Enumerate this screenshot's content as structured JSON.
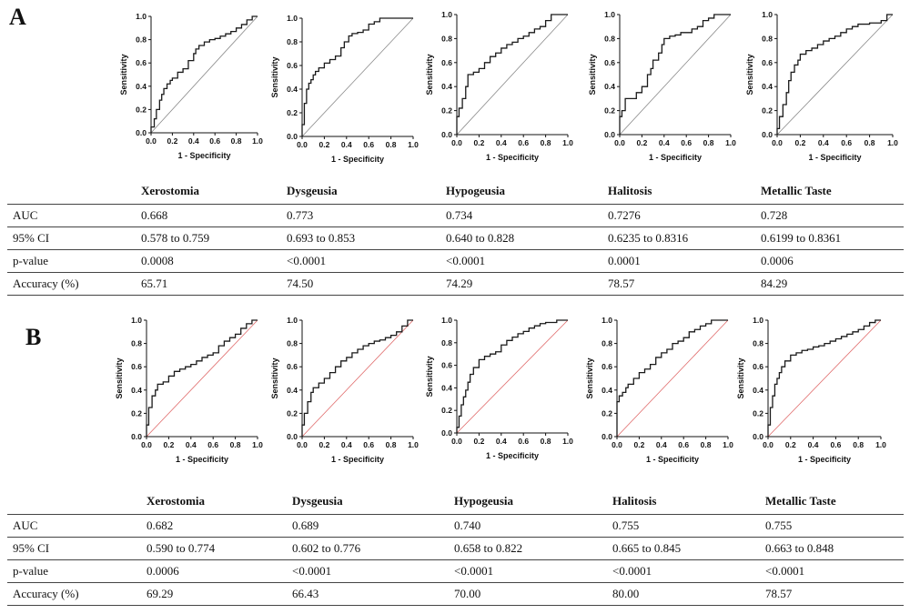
{
  "panels": [
    {
      "letter": "A",
      "columns": [
        "Xerostomia",
        "Dysgeusia",
        "Hypogeusia",
        "Halitosis",
        "Metallic Taste"
      ],
      "rows": [
        {
          "label": "AUC",
          "values": [
            "0.668",
            "0.773",
            "0.734",
            "0.7276",
            "0.728"
          ]
        },
        {
          "label": "95% CI",
          "values": [
            "0.578 to 0.759",
            "0.693 to 0.853",
            "0.640 to 0.828",
            "0.6235 to 0.8316",
            "0.6199 to 0.8361"
          ]
        },
        {
          "label": "p-value",
          "values": [
            "0.0008",
            "<0.0001",
            "<0.0001",
            "0.0001",
            "0.0006"
          ]
        },
        {
          "label": "Accuracy (%)",
          "values": [
            "65.71",
            "74.50",
            "74.29",
            "78.57",
            "84.29"
          ]
        }
      ]
    },
    {
      "letter": "B",
      "columns": [
        "Xerostomia",
        "Dysgeusia",
        "Hypogeusia",
        "Halitosis",
        "Metallic Taste"
      ],
      "rows": [
        {
          "label": "AUC",
          "values": [
            "0.682",
            "0.689",
            "0.740",
            "0.755",
            "0.755"
          ]
        },
        {
          "label": "95% CI",
          "values": [
            "0.590 to 0.774",
            "0.602 to 0.776",
            "0.658 to 0.822",
            "0.665 to 0.845",
            "0.663 to 0.848"
          ]
        },
        {
          "label": "p-value",
          "values": [
            "0.0006",
            "<0.0001",
            "<0.0001",
            "<0.0001",
            "<0.0001"
          ]
        },
        {
          "label": "Accuracy (%)",
          "values": [
            "69.29",
            "66.43",
            "70.00",
            "80.00",
            "78.57"
          ]
        }
      ]
    }
  ],
  "colors": {
    "curve": "#1a1a1a",
    "reference_panel_a": "#8a8a8a",
    "reference_panel_b": "#e06a6a",
    "separator": "#5b3a82"
  },
  "chart_data": [
    {
      "type": "line",
      "panel": "A",
      "xlabel": "1 - Specificity",
      "ylabel": "Sensitivity",
      "xlim": [
        0,
        1
      ],
      "ylim": [
        0,
        1
      ],
      "xticks": [
        "0.0",
        "0.2",
        "0.4",
        "0.6",
        "0.8",
        "1.0"
      ],
      "yticks": [
        "0.0",
        "0.2",
        "0.4",
        "0.6",
        "0.8",
        "1.0"
      ],
      "x": [
        0,
        0,
        0.03,
        0.05,
        0.08,
        0.1,
        0.12,
        0.15,
        0.18,
        0.2,
        0.25,
        0.3,
        0.35,
        0.4,
        0.42,
        0.45,
        0.5,
        0.55,
        0.6,
        0.65,
        0.7,
        0.75,
        0.8,
        0.85,
        0.9,
        0.95,
        1.0
      ],
      "y": [
        0,
        0.05,
        0.12,
        0.2,
        0.28,
        0.33,
        0.38,
        0.42,
        0.45,
        0.47,
        0.52,
        0.55,
        0.62,
        0.68,
        0.72,
        0.75,
        0.78,
        0.8,
        0.81,
        0.83,
        0.85,
        0.87,
        0.9,
        0.93,
        0.97,
        1.0,
        1.0
      ]
    },
    {
      "type": "line",
      "panel": "A",
      "xlabel": "1 - Specificity",
      "ylabel": "Sensitivity",
      "xlim": [
        0,
        1
      ],
      "ylim": [
        0,
        1
      ],
      "xticks": [
        "0.0",
        "0.2",
        "0.4",
        "0.6",
        "0.8",
        "1.0"
      ],
      "yticks": [
        "0.0",
        "0.2",
        "0.4",
        "0.6",
        "0.8",
        "1.0"
      ],
      "x": [
        0,
        0,
        0.02,
        0.04,
        0.06,
        0.08,
        0.1,
        0.12,
        0.15,
        0.2,
        0.25,
        0.3,
        0.35,
        0.38,
        0.42,
        0.45,
        0.5,
        0.55,
        0.6,
        0.65,
        0.7,
        0.8,
        0.9,
        1.0
      ],
      "y": [
        0,
        0.1,
        0.28,
        0.4,
        0.45,
        0.48,
        0.52,
        0.55,
        0.58,
        0.62,
        0.65,
        0.68,
        0.75,
        0.8,
        0.85,
        0.87,
        0.88,
        0.9,
        0.95,
        0.97,
        1.0,
        1.0,
        1.0,
        1.0
      ]
    },
    {
      "type": "line",
      "panel": "A",
      "xlabel": "1 - Specificity",
      "ylabel": "Sensitivity",
      "xlim": [
        0,
        1
      ],
      "ylim": [
        0,
        1
      ],
      "xticks": [
        "0.0",
        "0.2",
        "0.4",
        "0.6",
        "0.8",
        "1.0"
      ],
      "yticks": [
        "0.0",
        "0.2",
        "0.4",
        "0.6",
        "0.8",
        "1.0"
      ],
      "x": [
        0,
        0,
        0.02,
        0.05,
        0.08,
        0.1,
        0.15,
        0.2,
        0.25,
        0.3,
        0.35,
        0.4,
        0.45,
        0.5,
        0.55,
        0.6,
        0.65,
        0.7,
        0.75,
        0.8,
        0.85,
        0.9,
        1.0
      ],
      "y": [
        0,
        0.15,
        0.22,
        0.3,
        0.4,
        0.5,
        0.52,
        0.55,
        0.6,
        0.65,
        0.68,
        0.72,
        0.75,
        0.77,
        0.8,
        0.82,
        0.85,
        0.88,
        0.9,
        0.95,
        1.0,
        1.0,
        1.0
      ]
    },
    {
      "type": "line",
      "panel": "A",
      "xlabel": "1 - Specificity",
      "ylabel": "Sensitivity",
      "xlim": [
        0,
        1
      ],
      "ylim": [
        0,
        1
      ],
      "xticks": [
        "0.0",
        "0.2",
        "0.4",
        "0.6",
        "0.8",
        "1.0"
      ],
      "yticks": [
        "0.0",
        "0.2",
        "0.4",
        "0.6",
        "0.8",
        "1.0"
      ],
      "x": [
        0,
        0,
        0.02,
        0.05,
        0.1,
        0.15,
        0.2,
        0.25,
        0.28,
        0.3,
        0.35,
        0.38,
        0.4,
        0.45,
        0.5,
        0.55,
        0.6,
        0.65,
        0.7,
        0.75,
        0.8,
        0.85,
        0.9,
        1.0
      ],
      "y": [
        0,
        0.15,
        0.2,
        0.3,
        0.3,
        0.35,
        0.4,
        0.5,
        0.55,
        0.62,
        0.68,
        0.75,
        0.8,
        0.82,
        0.83,
        0.85,
        0.85,
        0.88,
        0.9,
        0.95,
        0.97,
        1.0,
        1.0,
        1.0
      ]
    },
    {
      "type": "line",
      "panel": "A",
      "xlabel": "1 - Specificity",
      "ylabel": "Sensitivity",
      "xlim": [
        0,
        1
      ],
      "ylim": [
        0,
        1
      ],
      "xticks": [
        "0.0",
        "0.2",
        "0.4",
        "0.6",
        "0.8",
        "1.0"
      ],
      "yticks": [
        "0.0",
        "0.2",
        "0.4",
        "0.6",
        "0.8",
        "1.0"
      ],
      "x": [
        0,
        0,
        0.02,
        0.05,
        0.08,
        0.1,
        0.12,
        0.15,
        0.18,
        0.2,
        0.25,
        0.3,
        0.35,
        0.4,
        0.45,
        0.5,
        0.55,
        0.6,
        0.65,
        0.7,
        0.8,
        0.9,
        0.95,
        1.0
      ],
      "y": [
        0,
        0.05,
        0.15,
        0.25,
        0.35,
        0.45,
        0.52,
        0.58,
        0.62,
        0.67,
        0.7,
        0.72,
        0.75,
        0.78,
        0.8,
        0.82,
        0.85,
        0.88,
        0.9,
        0.92,
        0.93,
        0.95,
        1.0,
        1.0
      ]
    },
    {
      "type": "line",
      "panel": "B",
      "xlabel": "1 - Specificity",
      "ylabel": "Sensitivity",
      "xlim": [
        0,
        1
      ],
      "ylim": [
        0,
        1
      ],
      "xticks": [
        "0.0",
        "0.2",
        "0.4",
        "0.6",
        "0.8",
        "1.0"
      ],
      "yticks": [
        "0.0",
        "0.2",
        "0.4",
        "0.6",
        "0.8",
        "1.0"
      ],
      "x": [
        0,
        0,
        0.02,
        0.05,
        0.08,
        0.1,
        0.15,
        0.2,
        0.25,
        0.3,
        0.35,
        0.4,
        0.45,
        0.5,
        0.55,
        0.6,
        0.65,
        0.7,
        0.75,
        0.8,
        0.85,
        0.9,
        0.95,
        1.0
      ],
      "y": [
        0,
        0.1,
        0.25,
        0.35,
        0.4,
        0.45,
        0.47,
        0.52,
        0.56,
        0.58,
        0.6,
        0.62,
        0.65,
        0.68,
        0.7,
        0.72,
        0.78,
        0.82,
        0.85,
        0.88,
        0.93,
        0.97,
        1.0,
        1.0
      ]
    },
    {
      "type": "line",
      "panel": "B",
      "xlabel": "1 - Specificity",
      "ylabel": "Sensitivity",
      "xlim": [
        0,
        1
      ],
      "ylim": [
        0,
        1
      ],
      "xticks": [
        "0.0",
        "0.2",
        "0.4",
        "0.6",
        "0.8",
        "1.0"
      ],
      "yticks": [
        "0.0",
        "0.2",
        "0.4",
        "0.6",
        "0.8",
        "1.0"
      ],
      "x": [
        0,
        0,
        0.02,
        0.05,
        0.08,
        0.1,
        0.15,
        0.2,
        0.25,
        0.3,
        0.35,
        0.4,
        0.45,
        0.5,
        0.55,
        0.6,
        0.65,
        0.7,
        0.75,
        0.8,
        0.85,
        0.9,
        0.95,
        1.0
      ],
      "y": [
        0,
        0.1,
        0.2,
        0.3,
        0.38,
        0.42,
        0.46,
        0.5,
        0.55,
        0.6,
        0.65,
        0.68,
        0.72,
        0.75,
        0.78,
        0.8,
        0.82,
        0.83,
        0.85,
        0.87,
        0.9,
        0.95,
        1.0,
        1.0
      ]
    },
    {
      "type": "line",
      "panel": "B",
      "xlabel": "1 - Specificity",
      "ylabel": "Sensitivity",
      "xlim": [
        0,
        1
      ],
      "ylim": [
        0,
        1
      ],
      "xticks": [
        "0.0",
        "0.2",
        "0.4",
        "0.6",
        "0.8",
        "1.0"
      ],
      "yticks": [
        "0.0",
        "0.2",
        "0.4",
        "0.6",
        "0.8",
        "1.0"
      ],
      "x": [
        0,
        0,
        0.02,
        0.04,
        0.06,
        0.08,
        0.1,
        0.12,
        0.15,
        0.2,
        0.25,
        0.3,
        0.35,
        0.4,
        0.45,
        0.5,
        0.55,
        0.6,
        0.65,
        0.7,
        0.75,
        0.8,
        0.9,
        1.0
      ],
      "y": [
        0,
        0.05,
        0.15,
        0.25,
        0.32,
        0.38,
        0.45,
        0.52,
        0.58,
        0.65,
        0.68,
        0.7,
        0.72,
        0.78,
        0.82,
        0.85,
        0.88,
        0.9,
        0.93,
        0.95,
        0.97,
        0.98,
        1.0,
        1.0
      ]
    },
    {
      "type": "line",
      "panel": "B",
      "xlabel": "1 - Specificity",
      "ylabel": "Sensitivity",
      "xlim": [
        0,
        1
      ],
      "ylim": [
        0,
        1
      ],
      "xticks": [
        "0.0",
        "0.2",
        "0.4",
        "0.6",
        "0.8",
        "1.0"
      ],
      "yticks": [
        "0.0",
        "0.2",
        "0.4",
        "0.6",
        "0.8",
        "1.0"
      ],
      "x": [
        0,
        0,
        0.02,
        0.05,
        0.08,
        0.1,
        0.15,
        0.2,
        0.25,
        0.3,
        0.35,
        0.4,
        0.45,
        0.5,
        0.55,
        0.6,
        0.65,
        0.7,
        0.75,
        0.8,
        0.85,
        0.9,
        1.0
      ],
      "y": [
        0,
        0.3,
        0.35,
        0.38,
        0.42,
        0.45,
        0.5,
        0.55,
        0.58,
        0.62,
        0.68,
        0.72,
        0.75,
        0.8,
        0.82,
        0.85,
        0.9,
        0.92,
        0.95,
        0.97,
        1.0,
        1.0,
        1.0
      ]
    },
    {
      "type": "line",
      "panel": "B",
      "xlabel": "1 - Specificity",
      "ylabel": "Sensitivity",
      "xlim": [
        0,
        1
      ],
      "ylim": [
        0,
        1
      ],
      "xticks": [
        "0.0",
        "0.2",
        "0.4",
        "0.6",
        "0.8",
        "1.0"
      ],
      "yticks": [
        "0.0",
        "0.2",
        "0.4",
        "0.6",
        "0.8",
        "1.0"
      ],
      "x": [
        0,
        0,
        0.02,
        0.04,
        0.06,
        0.08,
        0.1,
        0.12,
        0.15,
        0.2,
        0.25,
        0.3,
        0.35,
        0.4,
        0.45,
        0.5,
        0.55,
        0.6,
        0.65,
        0.7,
        0.75,
        0.8,
        0.85,
        0.9,
        0.95,
        1.0
      ],
      "y": [
        0,
        0.1,
        0.25,
        0.35,
        0.45,
        0.5,
        0.55,
        0.6,
        0.65,
        0.7,
        0.72,
        0.74,
        0.75,
        0.77,
        0.78,
        0.8,
        0.82,
        0.84,
        0.86,
        0.88,
        0.9,
        0.92,
        0.95,
        0.98,
        1.0,
        1.0
      ]
    }
  ]
}
